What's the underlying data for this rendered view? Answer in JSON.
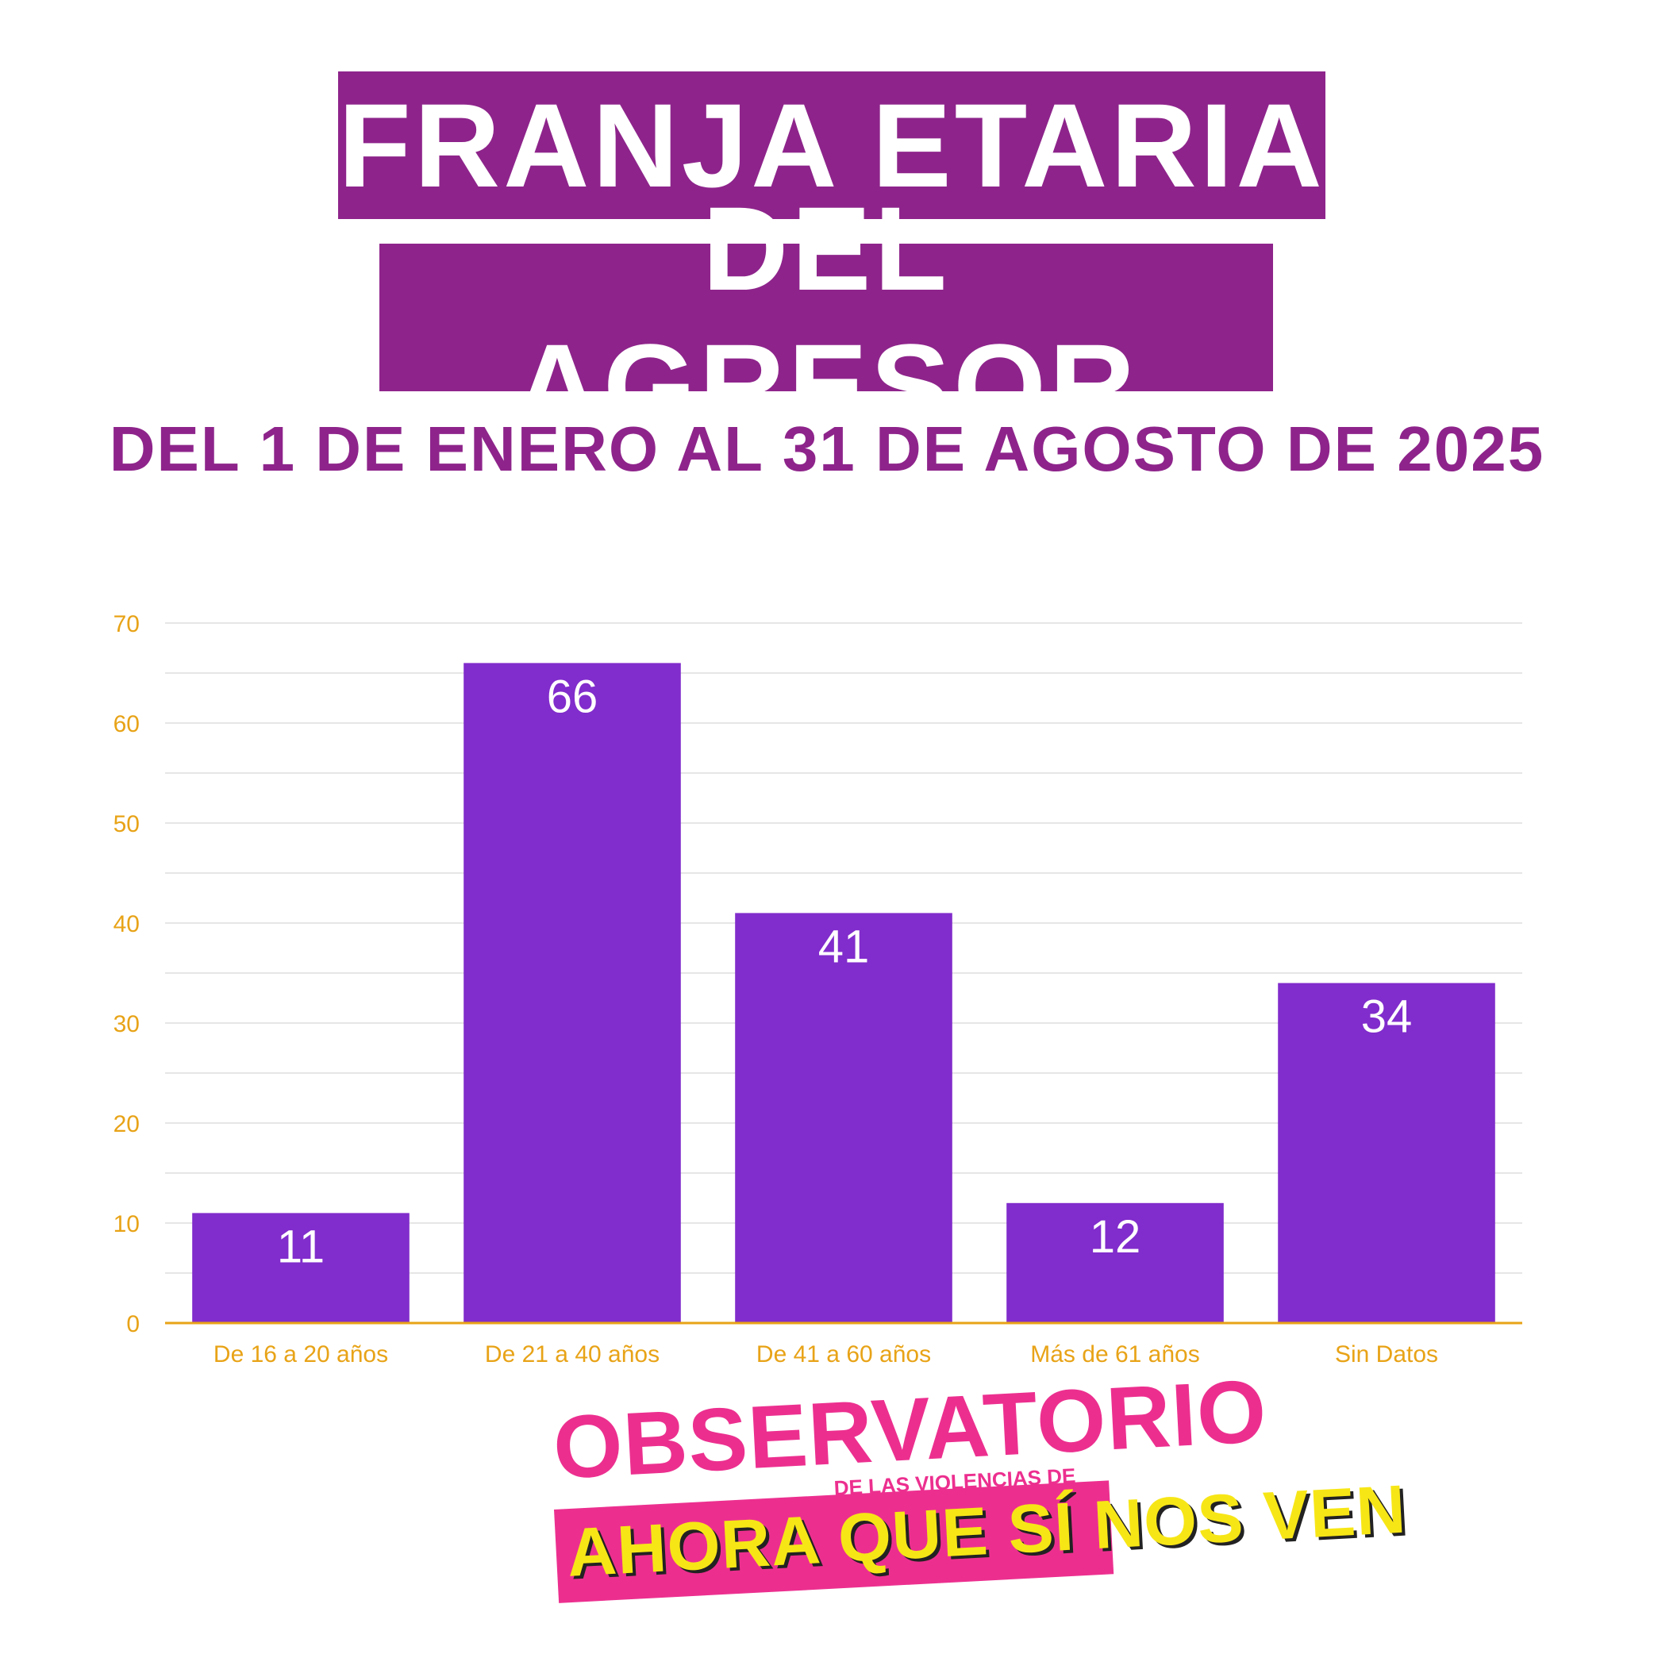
{
  "header": {
    "title_line_1": "FRANJA ETARIA",
    "title_line_2": "DEL AGRESOR",
    "subtitle": "DEL 1 DE ENERO AL 31 DE AGOSTO DE 2025"
  },
  "colors": {
    "title_bg": "#8e248b",
    "bar": "#812ccc",
    "axis_text": "#e8a317",
    "logo_pink": "#ec2f8f",
    "logo_yellow": "#f7e616"
  },
  "chart_data": {
    "type": "bar",
    "categories": [
      "De 16 a 20 años",
      "De 21 a 40 años",
      "De 41 a 60 años",
      "Más de 61 años",
      "Sin Datos"
    ],
    "values": [
      11,
      66,
      41,
      12,
      34
    ],
    "title": "FRANJA ETARIA DEL AGRESOR",
    "xlabel": "",
    "ylabel": "",
    "ylim": [
      0,
      70
    ],
    "yticks": [
      0,
      10,
      20,
      30,
      40,
      50,
      60,
      70
    ],
    "grid": true,
    "legend": "none"
  },
  "logo": {
    "main": "OBSERVATORIO",
    "sub": "DE LAS VIOLENCIAS DE GÉNERO",
    "slogan": "AHORA QUE SÍ NOS VEN"
  }
}
